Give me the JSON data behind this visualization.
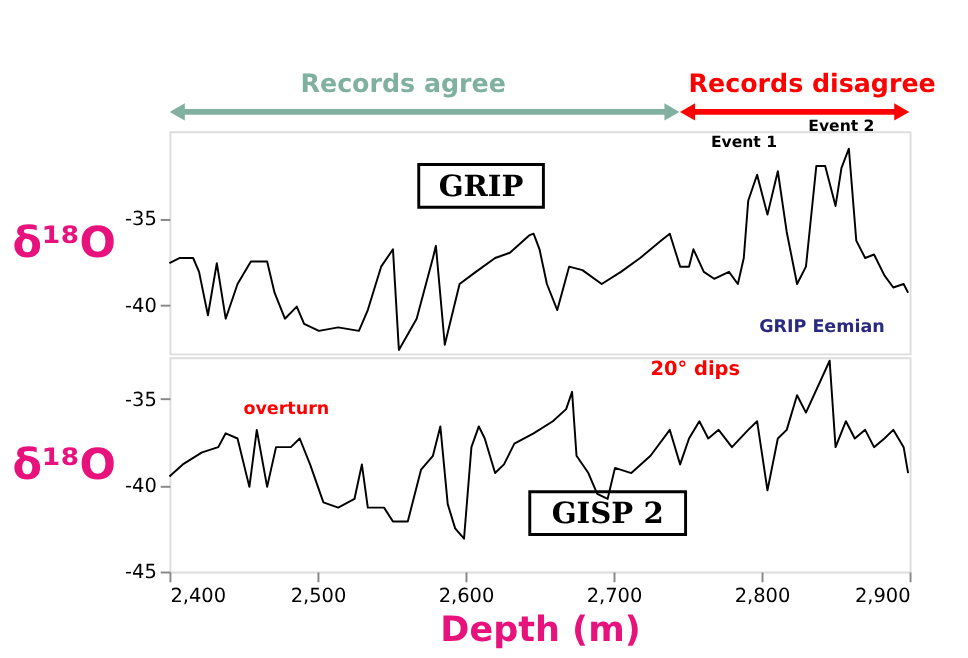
{
  "chart_data": [
    {
      "type": "line",
      "ylabel": "δ¹⁸O",
      "xlim": [
        2400,
        2900
      ],
      "ylim": [
        -42.8,
        -30
      ],
      "yticks": [
        -35,
        -40
      ],
      "tick_labels": "y",
      "legend": false,
      "grid": false,
      "line_style": "solid",
      "marker": "none",
      "x": [
        2400,
        2407,
        2416,
        2420,
        2426,
        2432,
        2438,
        2446,
        2455,
        2466,
        2471,
        2478,
        2486,
        2491,
        2501,
        2514,
        2528,
        2534,
        2543,
        2551,
        2555,
        2567,
        2578,
        2580,
        2586,
        2596,
        2607,
        2620,
        2630,
        2643,
        2646,
        2650,
        2655,
        2662,
        2670,
        2679,
        2692,
        2705,
        2718,
        2732,
        2738,
        2745,
        2751,
        2754,
        2761,
        2768,
        2778,
        2784,
        2788,
        2791,
        2797,
        2804,
        2811,
        2817,
        2824,
        2830,
        2837,
        2843,
        2850,
        2854,
        2859,
        2864,
        2870,
        2876,
        2883,
        2889,
        2896,
        2899
      ],
      "series": [
        {
          "name": "GRIP",
          "color": "#000000",
          "values": [
            -37.6,
            -37.3,
            -37.3,
            -38.1,
            -40.6,
            -37.6,
            -40.8,
            -38.8,
            -37.5,
            -37.5,
            -39.3,
            -40.8,
            -40.1,
            -41.1,
            -41.5,
            -41.3,
            -41.5,
            -40.3,
            -37.8,
            -36.8,
            -42.6,
            -40.8,
            -37.3,
            -36.6,
            -42.3,
            -38.8,
            -38.1,
            -37.3,
            -37,
            -36,
            -35.9,
            -36.8,
            -38.8,
            -40.3,
            -37.8,
            -38,
            -38.8,
            -38.1,
            -37.3,
            -36.3,
            -35.9,
            -37.8,
            -37.8,
            -36.8,
            -38.1,
            -38.5,
            -38.1,
            -38.8,
            -37.3,
            -34,
            -32.5,
            -34.8,
            -32.3,
            -35.8,
            -38.8,
            -37.8,
            -32,
            -32,
            -34.3,
            -32.1,
            -31,
            -36.3,
            -37.3,
            -37.1,
            -38.3,
            -39,
            -38.8,
            -39.3
          ]
        }
      ],
      "annotations": [
        "Records agree",
        "Records disagree",
        "Event 1",
        "Event 2",
        "GRIP Eemian"
      ]
    },
    {
      "type": "line",
      "ylabel": "δ¹⁸O",
      "xlabel": "Depth (m)",
      "xlim": [
        2400,
        2900
      ],
      "xticks": [
        {
          "value": 2400,
          "label": "2,400"
        },
        {
          "value": 2500,
          "label": "2,500"
        },
        {
          "value": 2600,
          "label": "2,600"
        },
        {
          "value": 2700,
          "label": "2,700"
        },
        {
          "value": 2800,
          "label": "2,800"
        },
        {
          "value": 2900,
          "label": "2,900"
        }
      ],
      "ylim": [
        -45,
        -32.6
      ],
      "yticks": [
        -35,
        -40,
        -45
      ],
      "legend": false,
      "grid": false,
      "line_style": "solid",
      "marker": "none",
      "x": [
        2400,
        2409,
        2422,
        2433,
        2438,
        2446,
        2454,
        2459,
        2466,
        2472,
        2482,
        2488,
        2495,
        2504,
        2514,
        2525,
        2530,
        2534,
        2545,
        2551,
        2561,
        2570,
        2578,
        2583,
        2588,
        2593,
        2599,
        2604,
        2609,
        2613,
        2620,
        2626,
        2633,
        2646,
        2659,
        2668,
        2672,
        2675,
        2683,
        2689,
        2696,
        2701,
        2712,
        2725,
        2738,
        2745,
        2751,
        2758,
        2764,
        2771,
        2780,
        2791,
        2797,
        2804,
        2811,
        2817,
        2824,
        2830,
        2846,
        2850,
        2857,
        2863,
        2870,
        2876,
        2883,
        2889,
        2896,
        2899
      ],
      "series": [
        {
          "name": "GISP 2",
          "color": "#000000",
          "values": [
            -39.5,
            -38.8,
            -38.1,
            -37.8,
            -37,
            -37.3,
            -40.1,
            -36.8,
            -40.1,
            -37.8,
            -37.8,
            -37.3,
            -38.8,
            -41,
            -41.3,
            -40.8,
            -38.8,
            -41.3,
            -41.3,
            -42.1,
            -42.1,
            -39.1,
            -38.3,
            -36.6,
            -41.1,
            -42.5,
            -43.1,
            -37.8,
            -36.6,
            -37.3,
            -39.3,
            -38.8,
            -37.6,
            -37,
            -36.3,
            -35.6,
            -34.6,
            -38.3,
            -39.3,
            -40.5,
            -40.8,
            -39,
            -39.3,
            -38.3,
            -36.8,
            -38.8,
            -37.3,
            -36.3,
            -37.3,
            -36.8,
            -37.8,
            -36.8,
            -36.3,
            -40.3,
            -37.3,
            -36.8,
            -34.8,
            -35.8,
            -32.8,
            -37.8,
            -36.3,
            -37.3,
            -36.8,
            -37.8,
            -37.3,
            -36.8,
            -37.8,
            -39.3
          ]
        }
      ],
      "annotations": [
        "20° dips",
        "overturn"
      ]
    }
  ]
}
